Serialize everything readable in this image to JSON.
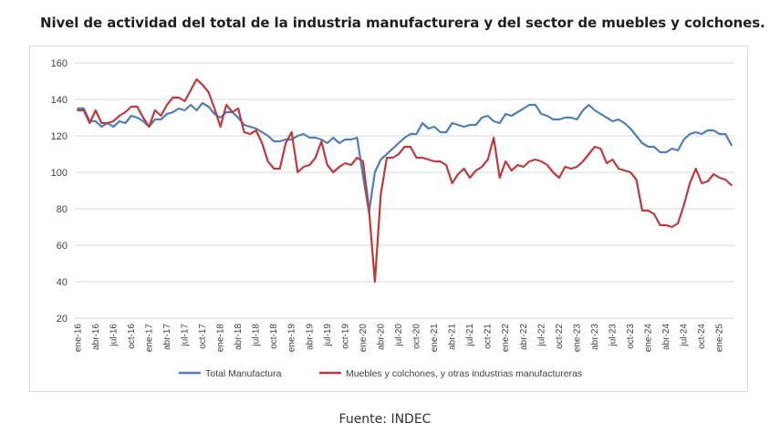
{
  "title": "Nivel de actividad del total de la industria manufacturera y del sector de muebles y colchones.",
  "source": "Fuente: INDEC",
  "colors": {
    "total": "#4a7ebb",
    "muebles": "#c0393b",
    "grid": "#d9d9d9",
    "text": "#404040"
  },
  "chart_data": {
    "type": "line",
    "title": "",
    "xlabel": "",
    "ylabel": "",
    "ylim": [
      20,
      160
    ],
    "yticks": [
      20,
      40,
      60,
      80,
      100,
      120,
      140,
      160
    ],
    "grid": true,
    "legend_position": "bottom",
    "x_tick_labels": [
      "ene-16",
      "abr-16",
      "jul-16",
      "oct-16",
      "ene-17",
      "abr-17",
      "jul-17",
      "oct-17",
      "ene-18",
      "abr-18",
      "jul-18",
      "oct-18",
      "ene-19",
      "abr-19",
      "jul-19",
      "oct-19",
      "ene-20",
      "abr-20",
      "jul-20",
      "oct-20",
      "ene-21",
      "abr-21",
      "jul-21",
      "oct-21",
      "ene-22",
      "abr-22",
      "jul-22",
      "oct-22",
      "ene-23",
      "abr-23",
      "jul-23",
      "oct-23",
      "ene-24",
      "abr-24",
      "jul-24",
      "oct-24",
      "ene-25"
    ],
    "x_start": "ene-16",
    "x_end": "jun-25",
    "series": [
      {
        "name": "Total Manufactura",
        "color": "#4a7ebb",
        "values": [
          135,
          135,
          128,
          128,
          125,
          127,
          125,
          128,
          127,
          131,
          130,
          128,
          125,
          129,
          129,
          132,
          133,
          135,
          134,
          137,
          134,
          138,
          136,
          132,
          130,
          133,
          133,
          130,
          126,
          125,
          124,
          122,
          120,
          117,
          117,
          118,
          118,
          120,
          121,
          119,
          119,
          118,
          116,
          119,
          116,
          118,
          118,
          119,
          98,
          78,
          100,
          107,
          110,
          113,
          116,
          119,
          121,
          121,
          127,
          124,
          125,
          122,
          122,
          127,
          126,
          125,
          126,
          126,
          130,
          131,
          128,
          127,
          132,
          131,
          133,
          135,
          137,
          137,
          132,
          131,
          129,
          129,
          130,
          130,
          129,
          134,
          137,
          134,
          132,
          130,
          128,
          129,
          127,
          124,
          120,
          116,
          114,
          114,
          111,
          111,
          113,
          112,
          118,
          121,
          122,
          121,
          123,
          123,
          121,
          121,
          115
        ]
      },
      {
        "name": "Muebles y colchones, y otras industrias manufactureras",
        "color": "#c0393b",
        "values": [
          134,
          134,
          127,
          134,
          127,
          127,
          128,
          131,
          133,
          136,
          136,
          130,
          125,
          134,
          131,
          137,
          141,
          141,
          139,
          145,
          151,
          148,
          144,
          135,
          125,
          137,
          133,
          135,
          122,
          121,
          123,
          116,
          106,
          102,
          102,
          116,
          122,
          100,
          103,
          104,
          108,
          117,
          104,
          100,
          103,
          105,
          104,
          108,
          106,
          80,
          40,
          88,
          108,
          108,
          110,
          114,
          114,
          108,
          108,
          107,
          106,
          106,
          104,
          94,
          99,
          102,
          97,
          101,
          103,
          107,
          119,
          97,
          106,
          101,
          104,
          103,
          106,
          107,
          106,
          104,
          100,
          97,
          103,
          102,
          103,
          106,
          110,
          114,
          113,
          105,
          107,
          102,
          101,
          100,
          96,
          79,
          79,
          77,
          71,
          71,
          70,
          72,
          82,
          94,
          102,
          94,
          95,
          99,
          97,
          96,
          93
        ]
      }
    ]
  }
}
